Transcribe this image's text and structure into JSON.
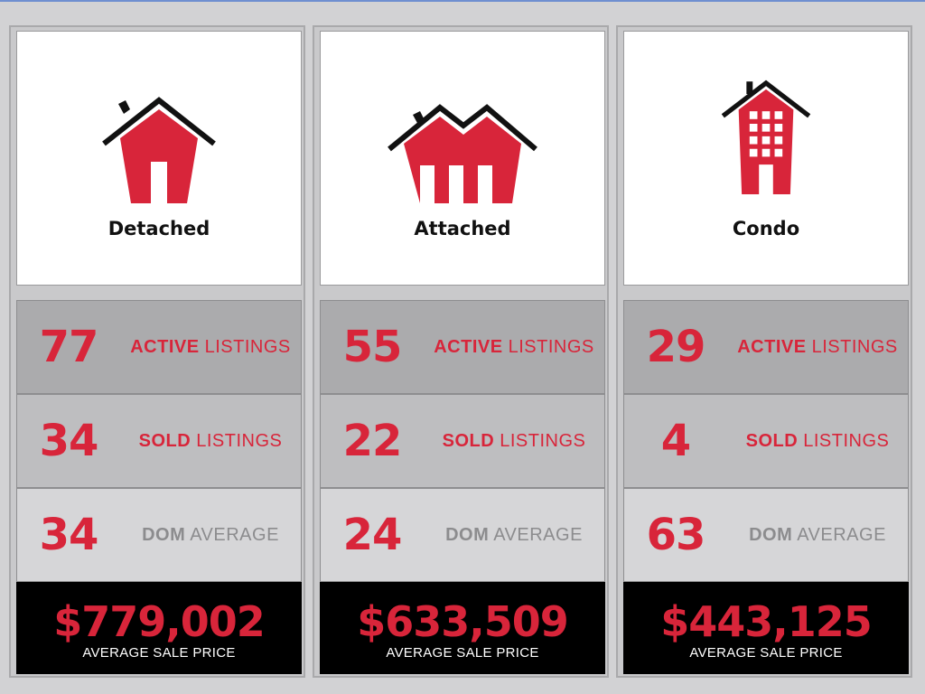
{
  "colors": {
    "accent": "#d8253a",
    "dark": "#111111",
    "muted_label": "#8c8c8e"
  },
  "columns": [
    {
      "title": "Detached",
      "icon": "detached-house-icon",
      "active_count": "77",
      "sold_count": "34",
      "dom_value": "34",
      "price": "$779,002"
    },
    {
      "title": "Attached",
      "icon": "attached-house-icon",
      "active_count": "55",
      "sold_count": "22",
      "dom_value": "24",
      "price": "$633,509"
    },
    {
      "title": "Condo",
      "icon": "condo-building-icon",
      "active_count": "29",
      "sold_count": "4",
      "dom_value": "63",
      "price": "$443,125"
    }
  ],
  "labels": {
    "active_bold": "ACTIVE",
    "sold_bold": "SOLD",
    "listings": " LISTINGS",
    "dom_bold": "DOM",
    "average": " AVERAGE",
    "avg_sale_price": "AVERAGE SALE PRICE"
  }
}
